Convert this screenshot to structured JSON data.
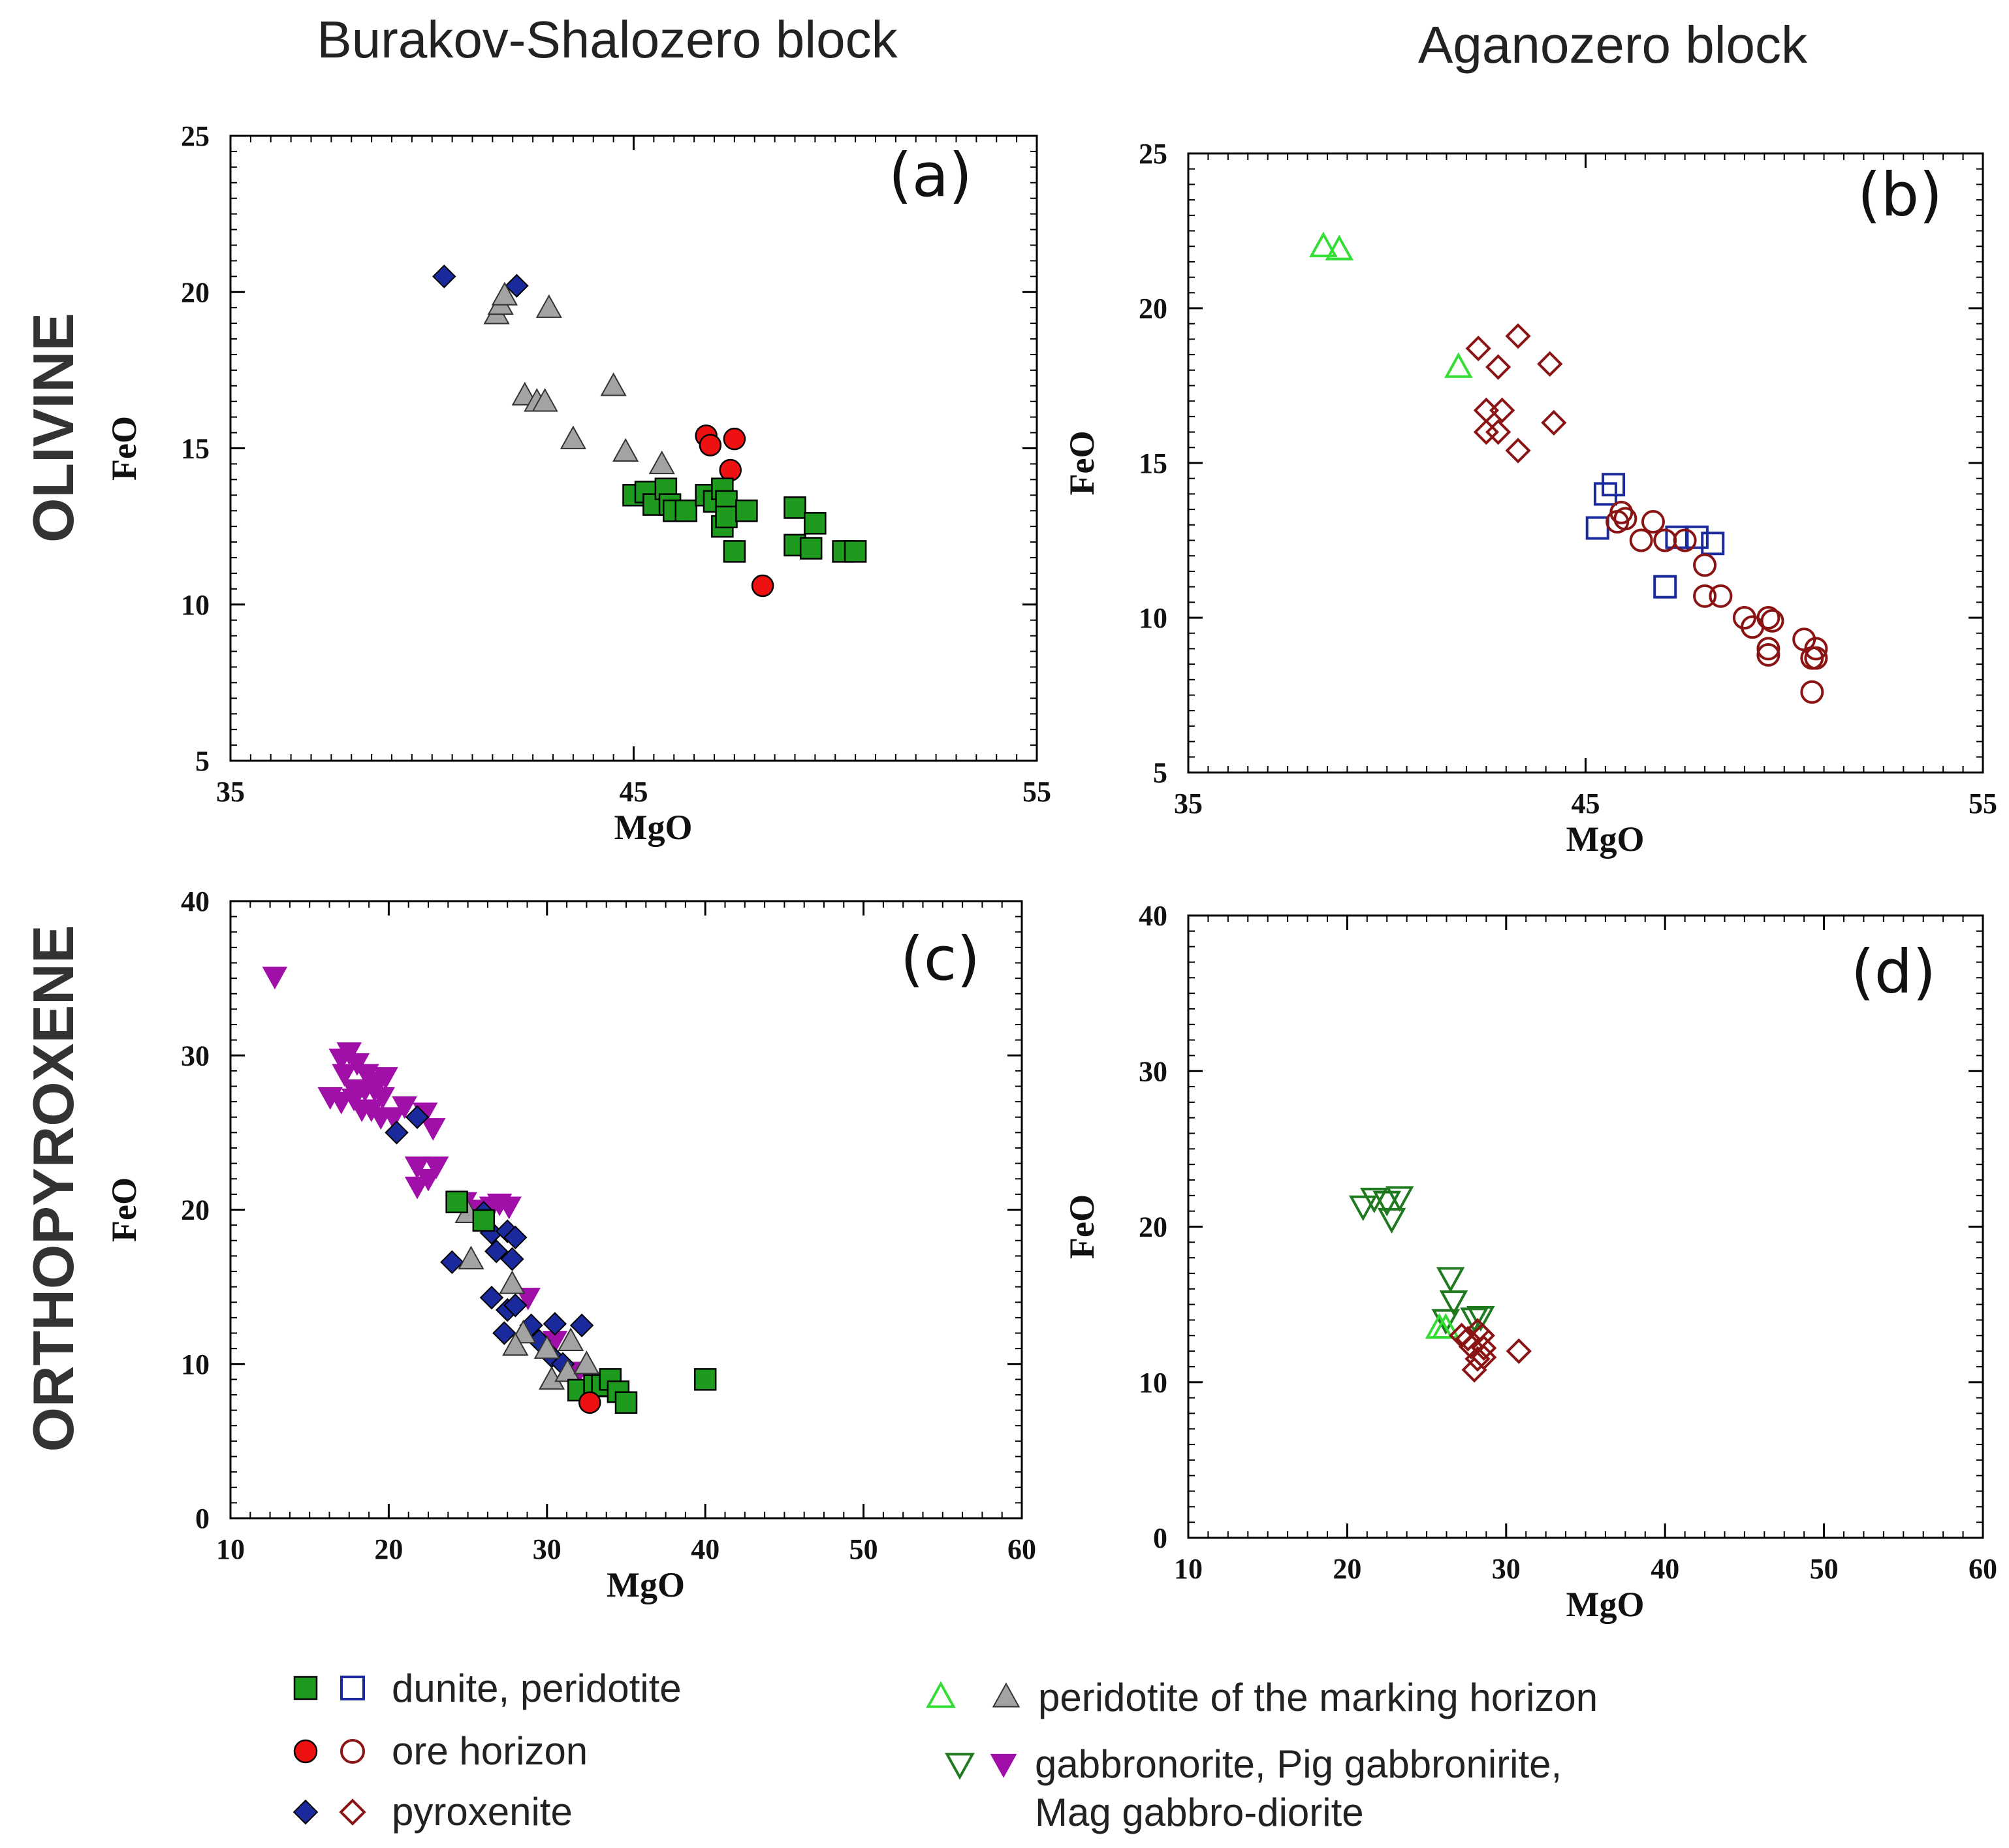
{
  "figure": {
    "col_headers": [
      "Burakov-Shalozero block",
      "Aganozero block"
    ],
    "row_labels": [
      "OLIVINE",
      "ORTHOPYROXENE"
    ]
  },
  "colors": {
    "green_fill": "#1e9a1e",
    "navy": "#1a2a9c",
    "red": "#ee1111",
    "darkred": "#8a1414",
    "gray": "#a3a3a3",
    "purple": "#a00fa8",
    "lime": "#33dd33",
    "darkgreen": "#1f7a1f"
  },
  "legend": [
    {
      "label": "dunite, peridotite",
      "markers": [
        "square-filled-green",
        "square-open-navy"
      ]
    },
    {
      "label": "ore horizon",
      "markers": [
        "circle-filled-red",
        "circle-open-darkred"
      ]
    },
    {
      "label": "pyroxenite",
      "markers": [
        "diamond-filled-navy",
        "diamond-open-darkred"
      ]
    },
    {
      "label": "peridotite of the marking horizon",
      "markers": [
        "triangle-open-lime",
        "triangle-filled-gray"
      ]
    },
    {
      "label": "gabbronorite, Pig gabbronirite,",
      "label2": "Mag gabbro-diorite",
      "markers": [
        "invtriangle-open-darkgreen",
        "invtriangle-filled-purple"
      ]
    }
  ],
  "chart_data": [
    {
      "id": "a",
      "panel_label": "(a)",
      "type": "scatter",
      "xlabel": "MgO",
      "ylabel": "FeO",
      "xlim": [
        35,
        55
      ],
      "ylim": [
        5,
        25
      ],
      "xticks": [
        35,
        45,
        55
      ],
      "yticks": [
        5,
        10,
        15,
        20,
        25
      ],
      "series": [
        {
          "name": "pyroxenite",
          "marker": "diamond-filled-navy",
          "points": [
            [
              40.3,
              20.5
            ],
            [
              42.1,
              20.2
            ]
          ]
        },
        {
          "name": "peridotite of the marking horizon",
          "marker": "triangle-filled-gray",
          "points": [
            [
              41.6,
              19.3
            ],
            [
              41.7,
              19.6
            ],
            [
              41.8,
              19.9
            ],
            [
              42.9,
              19.5
            ],
            [
              42.3,
              16.7
            ],
            [
              42.6,
              16.5
            ],
            [
              42.8,
              16.5
            ],
            [
              44.5,
              17.0
            ],
            [
              43.5,
              15.3
            ],
            [
              44.8,
              14.9
            ],
            [
              45.7,
              14.5
            ]
          ]
        },
        {
          "name": "ore horizon",
          "marker": "circle-filled-red",
          "points": [
            [
              46.8,
              15.4
            ],
            [
              46.9,
              15.1
            ],
            [
              47.5,
              15.3
            ],
            [
              47.4,
              14.3
            ],
            [
              48.2,
              10.6
            ]
          ]
        },
        {
          "name": "dunite, peridotite",
          "marker": "square-filled-green",
          "points": [
            [
              45.0,
              13.5
            ],
            [
              45.3,
              13.6
            ],
            [
              45.5,
              13.2
            ],
            [
              45.8,
              13.7
            ],
            [
              45.9,
              13.2
            ],
            [
              46.0,
              13.0
            ],
            [
              46.3,
              13.0
            ],
            [
              46.8,
              13.5
            ],
            [
              47.0,
              13.3
            ],
            [
              47.2,
              13.7
            ],
            [
              47.3,
              13.3
            ],
            [
              47.2,
              12.5
            ],
            [
              47.3,
              12.8
            ],
            [
              47.5,
              11.7
            ],
            [
              47.8,
              13.0
            ],
            [
              49.0,
              13.1
            ],
            [
              49.5,
              12.6
            ],
            [
              49.0,
              11.9
            ],
            [
              49.4,
              11.8
            ],
            [
              50.2,
              11.7
            ],
            [
              50.5,
              11.7
            ]
          ]
        }
      ]
    },
    {
      "id": "b",
      "panel_label": "(b)",
      "type": "scatter",
      "xlabel": "MgO",
      "ylabel": "FeO",
      "xlim": [
        35,
        55
      ],
      "ylim": [
        5,
        25
      ],
      "xticks": [
        35,
        45,
        55
      ],
      "yticks": [
        5,
        10,
        15,
        20,
        25
      ],
      "series": [
        {
          "name": "peridotite of the marking horizon",
          "marker": "triangle-open-lime",
          "points": [
            [
              38.4,
              22.0
            ],
            [
              38.8,
              21.9
            ],
            [
              41.8,
              18.1
            ]
          ]
        },
        {
          "name": "pyroxenite",
          "marker": "diamond-open-darkred",
          "points": [
            [
              42.3,
              18.7
            ],
            [
              42.8,
              18.1
            ],
            [
              43.3,
              19.1
            ],
            [
              44.1,
              18.2
            ],
            [
              42.5,
              16.7
            ],
            [
              42.9,
              16.7
            ],
            [
              42.5,
              16.0
            ],
            [
              42.8,
              16.0
            ],
            [
              43.3,
              15.4
            ],
            [
              44.2,
              16.3
            ]
          ]
        },
        {
          "name": "dunite, peridotite",
          "marker": "square-open-navy",
          "points": [
            [
              45.5,
              14.0
            ],
            [
              45.7,
              14.3
            ],
            [
              45.3,
              12.9
            ],
            [
              47.3,
              12.6
            ],
            [
              47.8,
              12.6
            ],
            [
              48.2,
              12.4
            ],
            [
              47.0,
              11.0
            ]
          ]
        },
        {
          "name": "ore horizon",
          "marker": "circle-open-darkred",
          "points": [
            [
              45.9,
              13.4
            ],
            [
              46.0,
              13.2
            ],
            [
              45.8,
              13.1
            ],
            [
              46.7,
              13.1
            ],
            [
              46.4,
              12.5
            ],
            [
              47.0,
              12.5
            ],
            [
              47.5,
              12.5
            ],
            [
              48.0,
              11.7
            ],
            [
              48.0,
              10.7
            ],
            [
              48.4,
              10.7
            ],
            [
              49.0,
              10.0
            ],
            [
              49.2,
              9.7
            ],
            [
              49.6,
              10.0
            ],
            [
              49.7,
              9.9
            ],
            [
              49.6,
              9.0
            ],
            [
              49.6,
              8.8
            ],
            [
              50.5,
              9.3
            ],
            [
              50.8,
              9.0
            ],
            [
              50.7,
              8.7
            ],
            [
              50.8,
              8.7
            ],
            [
              50.7,
              7.6
            ]
          ]
        }
      ]
    },
    {
      "id": "c",
      "panel_label": "(c)",
      "type": "scatter",
      "xlabel": "MgO",
      "ylabel": "FeO",
      "xlim": [
        10,
        60
      ],
      "ylim": [
        0,
        40
      ],
      "xticks": [
        10,
        20,
        30,
        40,
        50,
        60
      ],
      "yticks": [
        0,
        10,
        20,
        30,
        40
      ],
      "series": [
        {
          "name": "gabbronorite, Pig gabbronirite, Mag gabbro-diorite",
          "marker": "invtriangle-filled-purple",
          "points": [
            [
              12.8,
              35.1
            ],
            [
              17.0,
              29.8
            ],
            [
              17.5,
              30.2
            ],
            [
              18.0,
              29.5
            ],
            [
              18.6,
              28.8
            ],
            [
              19.2,
              28.3
            ],
            [
              19.8,
              28.6
            ],
            [
              17.2,
              28.8
            ],
            [
              17.8,
              27.8
            ],
            [
              18.5,
              27.8
            ],
            [
              19.1,
              27.8
            ],
            [
              19.6,
              27.3
            ],
            [
              16.3,
              27.3
            ],
            [
              17.0,
              27.0
            ],
            [
              17.8,
              27.2
            ],
            [
              18.3,
              26.5
            ],
            [
              18.9,
              26.5
            ],
            [
              19.5,
              26.0
            ],
            [
              20.3,
              26.0
            ],
            [
              21.0,
              26.7
            ],
            [
              22.3,
              26.3
            ],
            [
              22.8,
              25.3
            ],
            [
              21.8,
              22.8
            ],
            [
              22.5,
              22.0
            ],
            [
              23.0,
              22.8
            ],
            [
              21.8,
              21.5
            ],
            [
              24.8,
              20.5
            ],
            [
              25.8,
              20.0
            ],
            [
              26.5,
              20.2
            ],
            [
              27.0,
              20.4
            ],
            [
              27.6,
              20.2
            ],
            [
              28.8,
              14.3
            ],
            [
              30.5,
              11.5
            ],
            [
              32.0,
              9.5
            ]
          ]
        },
        {
          "name": "pyroxenite",
          "marker": "diamond-filled-navy",
          "points": [
            [
              21.8,
              26.0
            ],
            [
              20.5,
              25.0
            ],
            [
              26.0,
              19.8
            ],
            [
              26.5,
              18.5
            ],
            [
              27.5,
              18.6
            ],
            [
              28.0,
              18.2
            ],
            [
              26.8,
              17.3
            ],
            [
              27.8,
              16.8
            ],
            [
              24.0,
              16.6
            ],
            [
              26.5,
              14.3
            ],
            [
              27.5,
              13.5
            ],
            [
              28.0,
              13.8
            ],
            [
              27.3,
              12.0
            ],
            [
              29.0,
              12.5
            ],
            [
              30.5,
              12.6
            ],
            [
              32.2,
              12.5
            ],
            [
              29.5,
              11.5
            ],
            [
              30.3,
              10.5
            ],
            [
              31.0,
              10.0
            ]
          ]
        },
        {
          "name": "peridotite of the marking horizon",
          "marker": "triangle-filled-gray",
          "points": [
            [
              25.0,
              19.8
            ],
            [
              25.2,
              16.8
            ],
            [
              27.8,
              15.2
            ],
            [
              28.5,
              12.0
            ],
            [
              28.0,
              11.2
            ],
            [
              30.0,
              11.0
            ],
            [
              31.5,
              11.5
            ],
            [
              30.3,
              9.0
            ],
            [
              31.3,
              9.5
            ],
            [
              32.5,
              10.0
            ],
            [
              33.0,
              8.5
            ]
          ]
        },
        {
          "name": "dunite, peridotite",
          "marker": "square-filled-green",
          "points": [
            [
              24.3,
              20.5
            ],
            [
              26.0,
              19.3
            ],
            [
              32.0,
              8.3
            ],
            [
              33.0,
              8.6
            ],
            [
              33.5,
              8.6
            ],
            [
              34.0,
              9.0
            ],
            [
              34.5,
              8.2
            ],
            [
              35.0,
              7.5
            ],
            [
              40.0,
              9.0
            ]
          ]
        },
        {
          "name": "ore horizon",
          "marker": "circle-filled-red",
          "points": [
            [
              32.7,
              7.5
            ]
          ]
        }
      ]
    },
    {
      "id": "d",
      "panel_label": "(d)",
      "type": "scatter",
      "xlabel": "MgO",
      "ylabel": "FeO",
      "xlim": [
        10,
        60
      ],
      "ylim": [
        0,
        40
      ],
      "xticks": [
        10,
        20,
        30,
        40,
        50,
        60
      ],
      "yticks": [
        0,
        10,
        20,
        30,
        40
      ],
      "series": [
        {
          "name": "gabbronorite, Pig gabbronirite, Mag gabbro-diorite",
          "marker": "invtriangle-open-darkgreen",
          "points": [
            [
              21.0,
              21.3
            ],
            [
              21.7,
              21.8
            ],
            [
              22.5,
              21.6
            ],
            [
              22.8,
              20.5
            ],
            [
              23.3,
              21.9
            ],
            [
              26.5,
              16.7
            ],
            [
              26.7,
              15.2
            ],
            [
              28.0,
              14.1
            ],
            [
              28.4,
              14.2
            ],
            [
              26.2,
              14.0
            ]
          ]
        },
        {
          "name": "peridotite of the marking horizon",
          "marker": "triangle-open-lime",
          "points": [
            [
              25.8,
              13.5
            ],
            [
              26.2,
              13.5
            ]
          ]
        },
        {
          "name": "pyroxenite",
          "marker": "diamond-open-darkred",
          "points": [
            [
              27.2,
              13.0
            ],
            [
              27.6,
              12.8
            ],
            [
              28.2,
              13.3
            ],
            [
              28.5,
              13.0
            ],
            [
              27.8,
              12.3
            ],
            [
              28.6,
              12.2
            ],
            [
              28.2,
              11.5
            ],
            [
              28.6,
              11.6
            ],
            [
              28.0,
              10.8
            ],
            [
              30.8,
              12.0
            ]
          ]
        }
      ]
    }
  ]
}
